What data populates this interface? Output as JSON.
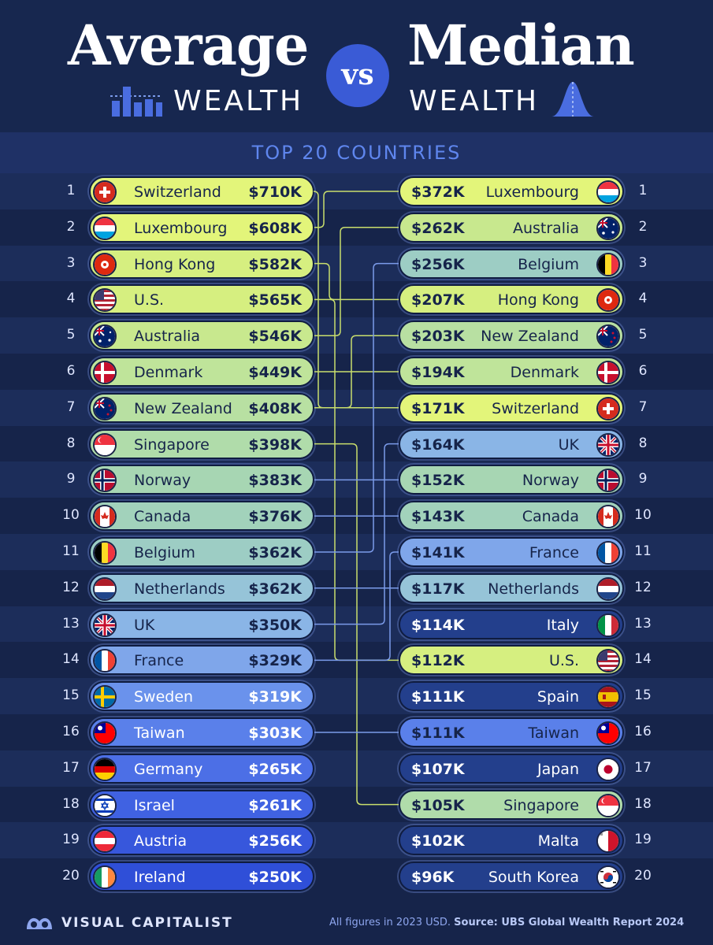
{
  "header": {
    "title_left": "Average",
    "subtitle_left": "WEALTH",
    "vs": "vs",
    "title_right": "Median",
    "subtitle_right": "WEALTH",
    "banner": "TOP 20 COUNTRIES"
  },
  "chart_data": {
    "type": "table",
    "title": "Average vs Median Wealth — Top 20 Countries",
    "average_wealth": [
      {
        "rank": "1",
        "country": "Switzerland",
        "value": "$710K",
        "flag": "ch",
        "color": "#e3f57a"
      },
      {
        "rank": "2",
        "country": "Luxembourg",
        "value": "$608K",
        "flag": "lu",
        "color": "#e3f57a"
      },
      {
        "rank": "3",
        "country": "Hong Kong",
        "value": "$582K",
        "flag": "hk",
        "color": "#d6ef80"
      },
      {
        "rank": "4",
        "country": "U.S.",
        "value": "$565K",
        "flag": "us",
        "color": "#d6ef80"
      },
      {
        "rank": "5",
        "country": "Australia",
        "value": "$546K",
        "flag": "au",
        "color": "#c8e88e"
      },
      {
        "rank": "6",
        "country": "Denmark",
        "value": "$449K",
        "flag": "dk",
        "color": "#bfe49a"
      },
      {
        "rank": "7",
        "country": "New Zealand",
        "value": "$408K",
        "flag": "nz",
        "color": "#b8e0a2"
      },
      {
        "rank": "8",
        "country": "Singapore",
        "value": "$398K",
        "flag": "sg",
        "color": "#b0dcaa"
      },
      {
        "rank": "9",
        "country": "Norway",
        "value": "$383K",
        "flag": "no",
        "color": "#a7d6b3"
      },
      {
        "rank": "10",
        "country": "Canada",
        "value": "$376K",
        "flag": "ca",
        "color": "#a2d2bb"
      },
      {
        "rank": "11",
        "country": "Belgium",
        "value": "$362K",
        "flag": "be",
        "color": "#9dcdc4"
      },
      {
        "rank": "12",
        "country": "Netherlands",
        "value": "$362K",
        "flag": "nl",
        "color": "#96c4d8"
      },
      {
        "rank": "13",
        "country": "UK",
        "value": "$350K",
        "flag": "gb",
        "color": "#8ab5e6"
      },
      {
        "rank": "14",
        "country": "France",
        "value": "$329K",
        "flag": "fr",
        "color": "#7fa6ea"
      },
      {
        "rank": "15",
        "country": "Sweden",
        "value": "$319K",
        "flag": "se",
        "color": "#6a92ec"
      },
      {
        "rank": "16",
        "country": "Taiwan",
        "value": "$303K",
        "flag": "tw",
        "color": "#5a80ea"
      },
      {
        "rank": "17",
        "country": "Germany",
        "value": "$265K",
        "flag": "de",
        "color": "#4c6fe6"
      },
      {
        "rank": "18",
        "country": "Israel",
        "value": "$261K",
        "flag": "il",
        "color": "#4062e2"
      },
      {
        "rank": "19",
        "country": "Austria",
        "value": "$256K",
        "flag": "at",
        "color": "#3757dc"
      },
      {
        "rank": "20",
        "country": "Ireland",
        "value": "$250K",
        "flag": "ie",
        "color": "#2f4fd8"
      }
    ],
    "median_wealth": [
      {
        "rank": "1",
        "country": "Luxembourg",
        "value": "$372K",
        "flag": "lu",
        "color": "#e3f57a"
      },
      {
        "rank": "2",
        "country": "Australia",
        "value": "$262K",
        "flag": "au",
        "color": "#c8e88e"
      },
      {
        "rank": "3",
        "country": "Belgium",
        "value": "$256K",
        "flag": "be",
        "color": "#9dcdc4"
      },
      {
        "rank": "4",
        "country": "Hong Kong",
        "value": "$207K",
        "flag": "hk",
        "color": "#d6ef80"
      },
      {
        "rank": "5",
        "country": "New Zealand",
        "value": "$203K",
        "flag": "nz",
        "color": "#b8e0a2"
      },
      {
        "rank": "6",
        "country": "Denmark",
        "value": "$194K",
        "flag": "dk",
        "color": "#bfe49a"
      },
      {
        "rank": "7",
        "country": "Switzerland",
        "value": "$171K",
        "flag": "ch",
        "color": "#e3f57a"
      },
      {
        "rank": "8",
        "country": "UK",
        "value": "$164K",
        "flag": "gb",
        "color": "#8ab5e6"
      },
      {
        "rank": "9",
        "country": "Norway",
        "value": "$152K",
        "flag": "no",
        "color": "#a7d6b3"
      },
      {
        "rank": "10",
        "country": "Canada",
        "value": "$143K",
        "flag": "ca",
        "color": "#a2d2bb"
      },
      {
        "rank": "11",
        "country": "France",
        "value": "$141K",
        "flag": "fr",
        "color": "#7fa6ea"
      },
      {
        "rank": "12",
        "country": "Netherlands",
        "value": "$117K",
        "flag": "nl",
        "color": "#96c4d8"
      },
      {
        "rank": "13",
        "country": "Italy",
        "value": "$114K",
        "flag": "it",
        "color": "#233f8c"
      },
      {
        "rank": "14",
        "country": "U.S.",
        "value": "$112K",
        "flag": "us",
        "color": "#d6ef80"
      },
      {
        "rank": "15",
        "country": "Spain",
        "value": "$111K",
        "flag": "es",
        "color": "#233f8c"
      },
      {
        "rank": "16",
        "country": "Taiwan",
        "value": "$111K",
        "flag": "tw",
        "color": "#5a80ea"
      },
      {
        "rank": "17",
        "country": "Japan",
        "value": "$107K",
        "flag": "jp",
        "color": "#233f8c"
      },
      {
        "rank": "18",
        "country": "Singapore",
        "value": "$105K",
        "flag": "sg",
        "color": "#b0dcaa"
      },
      {
        "rank": "19",
        "country": "Malta",
        "value": "$102K",
        "flag": "mt",
        "color": "#233f8c"
      },
      {
        "rank": "20",
        "country": "South Korea",
        "value": "$96K",
        "flag": "kr",
        "color": "#233f8c"
      }
    ]
  },
  "footer": {
    "brand": "VISUAL CAPITALIST",
    "note": "All figures in 2023 USD.",
    "source": "Source: UBS Global Wealth Report 2024"
  },
  "colors": {
    "background": "#16244a",
    "stripe_dark": "#16244a",
    "stripe_light": "#1c2d5a",
    "accent": "#3a5bd6",
    "connector": "#c9de6c",
    "connector_blue": "#7b9bea",
    "banner_text": "#5f86ee"
  }
}
